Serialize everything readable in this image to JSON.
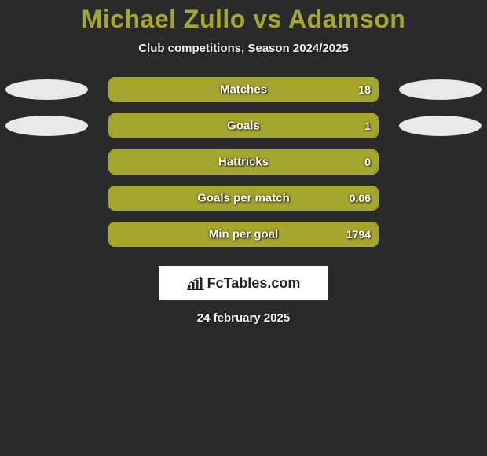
{
  "title": "Michael Zullo vs Adamson",
  "subtitle": "Club competitions, Season 2024/2025",
  "date": "24 february 2025",
  "logo_text": "FcTables.com",
  "colors": {
    "accent": "#a5a62e",
    "bar_fill": "#a5a62e",
    "bar_border": "#a5a62e",
    "background": "#2a2a2a",
    "oval": "#e9e9e9",
    "text_light": "#ffffff"
  },
  "stats": [
    {
      "label": "Matches",
      "left_value": null,
      "right_value": "18",
      "right_fill_pct": 100,
      "left_fill_pct": 0,
      "show_left_oval": true,
      "show_right_oval": true
    },
    {
      "label": "Goals",
      "left_value": null,
      "right_value": "1",
      "right_fill_pct": 100,
      "left_fill_pct": 0,
      "show_left_oval": true,
      "show_right_oval": true
    },
    {
      "label": "Hattricks",
      "left_value": null,
      "right_value": "0",
      "right_fill_pct": 100,
      "left_fill_pct": 0,
      "show_left_oval": false,
      "show_right_oval": false
    },
    {
      "label": "Goals per match",
      "left_value": null,
      "right_value": "0.06",
      "right_fill_pct": 100,
      "left_fill_pct": 0,
      "show_left_oval": false,
      "show_right_oval": false
    },
    {
      "label": "Min per goal",
      "left_value": null,
      "right_value": "1794",
      "right_fill_pct": 100,
      "left_fill_pct": 0,
      "show_left_oval": false,
      "show_right_oval": false
    }
  ]
}
